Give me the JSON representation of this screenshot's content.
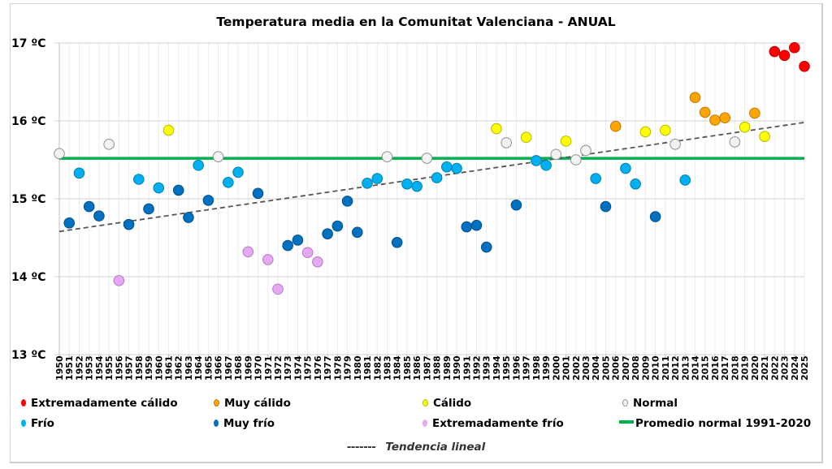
{
  "chart_data": {
    "type": "scatter",
    "title": "Temperatura media en la Comunitat Valenciana - ANUAL",
    "xlabel": "",
    "ylabel": "",
    "ylim": [
      13,
      17
    ],
    "xlim": [
      1950,
      2025
    ],
    "grid": true,
    "y_ticks": [
      "13 ºC",
      "14 ºC",
      "15 ºC",
      "16 ºC",
      "17 ºC"
    ],
    "y_tick_values": [
      13,
      14,
      15,
      16,
      17
    ],
    "categories_legend": [
      {
        "key": "ec",
        "name": "Extremadamente cálido",
        "color": "#ff0000",
        "border": "#c00000"
      },
      {
        "key": "mc",
        "name": "Muy cálido",
        "color": "#ffa500",
        "border": "#c07800"
      },
      {
        "key": "c",
        "name": "Cálido",
        "color": "#ffff00",
        "border": "#b8b800"
      },
      {
        "key": "n",
        "name": "Normal",
        "color": "#f2f2f2",
        "border": "#909090"
      },
      {
        "key": "f",
        "name": "Frío",
        "color": "#00b0f0",
        "border": "#0080b0"
      },
      {
        "key": "mf",
        "name": "Muy frío",
        "color": "#0070c0",
        "border": "#004f8a"
      },
      {
        "key": "ef",
        "name": "Extremadamente frío",
        "color": "#e6a8f5",
        "border": "#b07cc0"
      }
    ],
    "normal_line": {
      "name": "Promedio normal 1991-2020",
      "value": 15.52,
      "color": "#00b050"
    },
    "trend_line": {
      "name": "Tendencia lineal",
      "start": [
        1950,
        14.58
      ],
      "end": [
        2025,
        15.98
      ],
      "color": "#555555"
    },
    "points": [
      {
        "year": 1950,
        "value": 15.58,
        "cat": "n"
      },
      {
        "year": 1951,
        "value": 14.69,
        "cat": "mf"
      },
      {
        "year": 1952,
        "value": 15.33,
        "cat": "f"
      },
      {
        "year": 1953,
        "value": 14.9,
        "cat": "mf"
      },
      {
        "year": 1954,
        "value": 14.78,
        "cat": "mf"
      },
      {
        "year": 1955,
        "value": 15.7,
        "cat": "n"
      },
      {
        "year": 1956,
        "value": 13.95,
        "cat": "ef"
      },
      {
        "year": 1957,
        "value": 14.67,
        "cat": "mf"
      },
      {
        "year": 1958,
        "value": 15.25,
        "cat": "f"
      },
      {
        "year": 1959,
        "value": 14.87,
        "cat": "mf"
      },
      {
        "year": 1960,
        "value": 15.14,
        "cat": "f"
      },
      {
        "year": 1961,
        "value": 15.88,
        "cat": "c"
      },
      {
        "year": 1962,
        "value": 15.11,
        "cat": "mf"
      },
      {
        "year": 1963,
        "value": 14.76,
        "cat": "mf"
      },
      {
        "year": 1964,
        "value": 15.43,
        "cat": "f"
      },
      {
        "year": 1965,
        "value": 14.98,
        "cat": "mf"
      },
      {
        "year": 1966,
        "value": 15.54,
        "cat": "n"
      },
      {
        "year": 1967,
        "value": 15.21,
        "cat": "f"
      },
      {
        "year": 1968,
        "value": 15.34,
        "cat": "f"
      },
      {
        "year": 1969,
        "value": 14.32,
        "cat": "ef"
      },
      {
        "year": 1970,
        "value": 15.07,
        "cat": "mf"
      },
      {
        "year": 1971,
        "value": 14.22,
        "cat": "ef"
      },
      {
        "year": 1972,
        "value": 13.84,
        "cat": "ef"
      },
      {
        "year": 1973,
        "value": 14.4,
        "cat": "mf"
      },
      {
        "year": 1974,
        "value": 14.47,
        "cat": "mf"
      },
      {
        "year": 1975,
        "value": 14.31,
        "cat": "ef"
      },
      {
        "year": 1976,
        "value": 14.19,
        "cat": "ef"
      },
      {
        "year": 1977,
        "value": 14.55,
        "cat": "mf"
      },
      {
        "year": 1978,
        "value": 14.65,
        "cat": "mf"
      },
      {
        "year": 1979,
        "value": 14.97,
        "cat": "mf"
      },
      {
        "year": 1980,
        "value": 14.57,
        "cat": "mf"
      },
      {
        "year": 1981,
        "value": 15.2,
        "cat": "f"
      },
      {
        "year": 1982,
        "value": 15.26,
        "cat": "f"
      },
      {
        "year": 1983,
        "value": 15.54,
        "cat": "n"
      },
      {
        "year": 1984,
        "value": 14.44,
        "cat": "mf"
      },
      {
        "year": 1985,
        "value": 15.19,
        "cat": "f"
      },
      {
        "year": 1986,
        "value": 15.16,
        "cat": "f"
      },
      {
        "year": 1987,
        "value": 15.52,
        "cat": "n"
      },
      {
        "year": 1988,
        "value": 15.27,
        "cat": "f"
      },
      {
        "year": 1989,
        "value": 15.41,
        "cat": "f"
      },
      {
        "year": 1990,
        "value": 15.39,
        "cat": "f"
      },
      {
        "year": 1991,
        "value": 14.64,
        "cat": "mf"
      },
      {
        "year": 1992,
        "value": 14.66,
        "cat": "mf"
      },
      {
        "year": 1993,
        "value": 14.38,
        "cat": "mf"
      },
      {
        "year": 1994,
        "value": 15.9,
        "cat": "c"
      },
      {
        "year": 1995,
        "value": 15.72,
        "cat": "n"
      },
      {
        "year": 1996,
        "value": 14.92,
        "cat": "mf"
      },
      {
        "year": 1997,
        "value": 15.79,
        "cat": "c"
      },
      {
        "year": 1998,
        "value": 15.49,
        "cat": "f"
      },
      {
        "year": 1999,
        "value": 15.43,
        "cat": "f"
      },
      {
        "year": 2000,
        "value": 15.57,
        "cat": "n"
      },
      {
        "year": 2001,
        "value": 15.74,
        "cat": "c"
      },
      {
        "year": 2002,
        "value": 15.5,
        "cat": "n"
      },
      {
        "year": 2003,
        "value": 15.62,
        "cat": "n"
      },
      {
        "year": 2004,
        "value": 15.26,
        "cat": "f"
      },
      {
        "year": 2005,
        "value": 14.9,
        "cat": "mf"
      },
      {
        "year": 2006,
        "value": 15.93,
        "cat": "mc"
      },
      {
        "year": 2007,
        "value": 15.39,
        "cat": "f"
      },
      {
        "year": 2008,
        "value": 15.19,
        "cat": "f"
      },
      {
        "year": 2009,
        "value": 15.86,
        "cat": "c"
      },
      {
        "year": 2010,
        "value": 14.77,
        "cat": "mf"
      },
      {
        "year": 2011,
        "value": 15.88,
        "cat": "c"
      },
      {
        "year": 2012,
        "value": 15.7,
        "cat": "n"
      },
      {
        "year": 2013,
        "value": 15.24,
        "cat": "f"
      },
      {
        "year": 2014,
        "value": 16.3,
        "cat": "mc"
      },
      {
        "year": 2015,
        "value": 16.11,
        "cat": "mc"
      },
      {
        "year": 2016,
        "value": 16.01,
        "cat": "mc"
      },
      {
        "year": 2017,
        "value": 16.04,
        "cat": "mc"
      },
      {
        "year": 2018,
        "value": 15.73,
        "cat": "n"
      },
      {
        "year": 2019,
        "value": 15.92,
        "cat": "c"
      },
      {
        "year": 2020,
        "value": 16.1,
        "cat": "mc"
      },
      {
        "year": 2021,
        "value": 15.8,
        "cat": "c"
      },
      {
        "year": 2022,
        "value": 16.89,
        "cat": "ec"
      },
      {
        "year": 2023,
        "value": 16.84,
        "cat": "ec"
      },
      {
        "year": 2024,
        "value": 16.94,
        "cat": "ec"
      },
      {
        "year": 2025,
        "value": 16.7,
        "cat": "ec"
      }
    ]
  },
  "legend": {
    "items": [
      {
        "label": "Extremadamente cálido",
        "color": "#ff0000"
      },
      {
        "label": "Muy cálido",
        "color": "#ffa500"
      },
      {
        "label": "Cálido",
        "color": "#ffff00"
      },
      {
        "label": "Normal",
        "color": "#f2f2f2"
      },
      {
        "label": "Frío",
        "color": "#00b0f0"
      },
      {
        "label": "Muy frío",
        "color": "#0070c0"
      },
      {
        "label": "Extremadamente frío",
        "color": "#e6a8f5"
      },
      {
        "label": "Promedio normal 1991-2020",
        "color": "#00b050"
      }
    ],
    "trend_dash": "-------",
    "trend_label": "Tendencia lineal"
  }
}
